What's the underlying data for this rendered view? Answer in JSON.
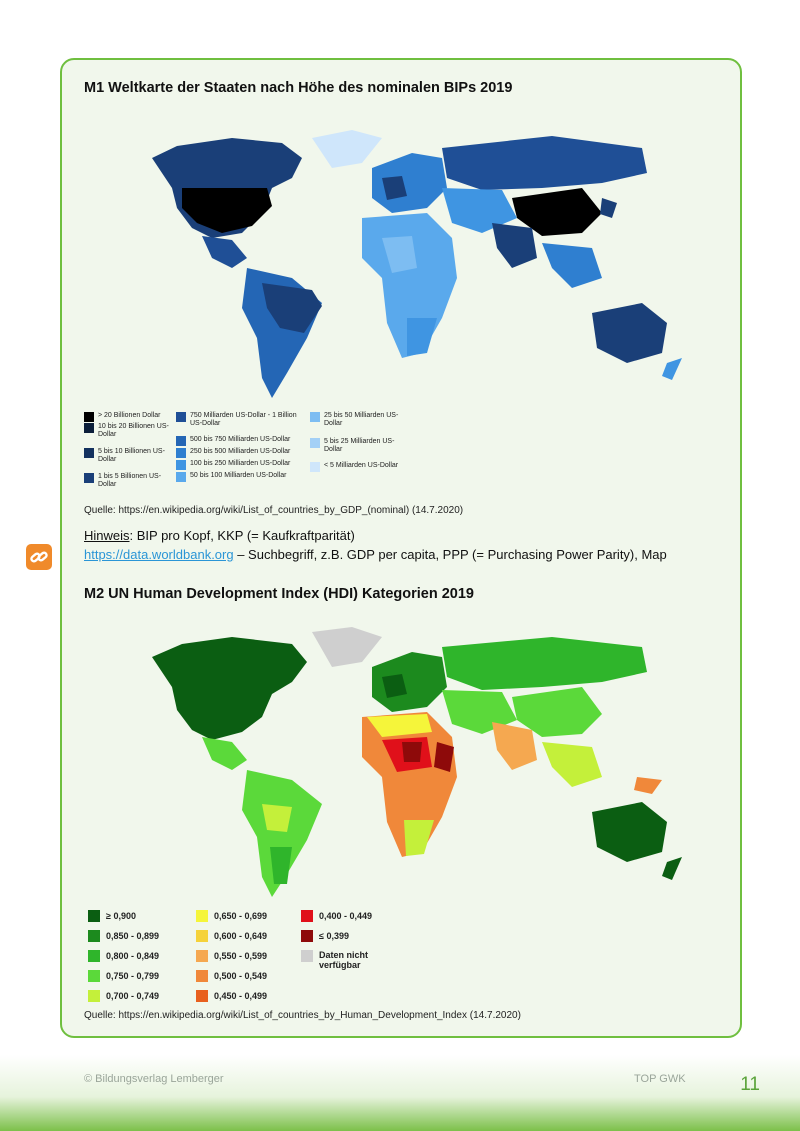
{
  "m1": {
    "title": "M1 Weltkarte der Staaten nach Höhe des nominalen BIPs 2019",
    "legend": [
      {
        "label": "> 20 Billionen Dollar",
        "color": "#000000"
      },
      {
        "label": "10 bis 20 Billionen US-Dollar",
        "color": "#0b1e3a"
      },
      {
        "label": "5 bis 10 Billionen US-Dollar",
        "color": "#13315e"
      },
      {
        "label": "1 bis 5 Billionen US-Dollar",
        "color": "#1a3f78"
      },
      {
        "label": "750 Milliarden US-Dollar - 1 Billion US-Dollar",
        "color": "#1f4f96"
      },
      {
        "label": "500 bis 750 Milliarden US-Dollar",
        "color": "#2466b5"
      },
      {
        "label": "250 bis 500 Milliarden US-Dollar",
        "color": "#2f7fd0"
      },
      {
        "label": "100 bis 250 Milliarden US-Dollar",
        "color": "#3f95e2"
      },
      {
        "label": "50 bis 100 Milliarden US-Dollar",
        "color": "#5aa9ec"
      },
      {
        "label": "25 bis 50 Milliarden US-Dollar",
        "color": "#7dbdf2"
      },
      {
        "label": "5 bis 25 Milliarden US-Dollar",
        "color": "#a3d0f6"
      },
      {
        "label": "< 5 Milliarden US-Dollar",
        "color": "#cfe6fb"
      }
    ],
    "source": "Quelle: https://en.wikipedia.org/wiki/List_of_countries_by_GDP_(nominal) (14.7.2020)"
  },
  "hint": {
    "label": "Hinweis",
    "text": ": BIP pro Kopf, KKP (= Kaufkraftparität)",
    "link": "https://data.worldbank.org",
    "link_text": " – Suchbegriff, z.B. GDP per capita, PPP (= Purchasing Power Parity), Map"
  },
  "m2": {
    "title": "M2 UN Human Development Index (HDI) Kategorien 2019",
    "legend": [
      {
        "label": "≥ 0,900",
        "color": "#0b5e12"
      },
      {
        "label": "0,850 - 0,899",
        "color": "#1c8a1e"
      },
      {
        "label": "0,800 - 0,849",
        "color": "#2fb52b"
      },
      {
        "label": "0,750 - 0,799",
        "color": "#5bd93a"
      },
      {
        "label": "0,700 - 0,749",
        "color": "#c4f03a"
      },
      {
        "label": "0,650 - 0,699",
        "color": "#f5f53a"
      },
      {
        "label": "0,600 - 0,649",
        "color": "#f5d23a"
      },
      {
        "label": "0,550 - 0,599",
        "color": "#f5a850"
      },
      {
        "label": "0,500 - 0,549",
        "color": "#f0883a"
      },
      {
        "label": "0,450 - 0,499",
        "color": "#e8601e"
      },
      {
        "label": "0,400 - 0,449",
        "color": "#e0101a"
      },
      {
        "label": "≤ 0,399",
        "color": "#8e0a0a"
      },
      {
        "label": "Daten nicht verfügbar",
        "color": "#cfcfcf"
      }
    ],
    "source": "Quelle: https://en.wikipedia.org/wiki/List_of_countries_by_Human_Development_Index (14.7.2020)"
  },
  "footer": {
    "publisher": "© Bildungsverlag Lemberger",
    "series": "TOP GWK",
    "page": "11"
  }
}
